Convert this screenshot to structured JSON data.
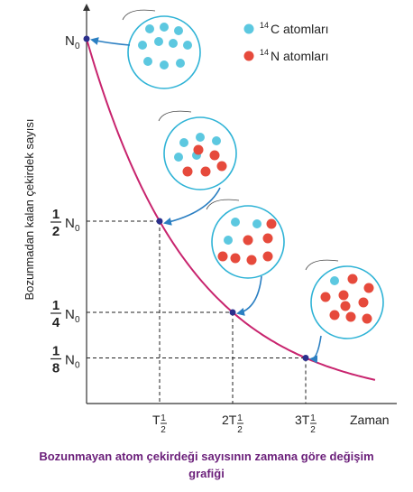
{
  "chart_data": {
    "type": "line",
    "ylabel": "Bozunmadan kalan çekirdek sayısı",
    "xlabel": "Zaman",
    "x_ticks": [
      {
        "value": 1,
        "main": "T",
        "sub": "1",
        "subden": "2",
        "prefix": ""
      },
      {
        "value": 2,
        "main": "T",
        "sub": "1",
        "subden": "2",
        "prefix": "2"
      },
      {
        "value": 3,
        "main": "T",
        "sub": "1",
        "subden": "2",
        "prefix": "3"
      }
    ],
    "y_ticks": [
      {
        "value": 1,
        "num": "",
        "den": "",
        "label": "N",
        "sub": "0"
      },
      {
        "value": 0.5,
        "num": "1",
        "den": "2",
        "label": "N",
        "sub": "0"
      },
      {
        "value": 0.25,
        "num": "1",
        "den": "4",
        "label": "N",
        "sub": "0"
      },
      {
        "value": 0.125,
        "num": "1",
        "den": "8",
        "label": "N",
        "sub": "0"
      }
    ],
    "series": [
      {
        "x": [
          0,
          1,
          2,
          3
        ],
        "y": [
          1,
          0.5,
          0.25,
          0.125
        ],
        "color": "#c8246e"
      }
    ],
    "legend": [
      {
        "mass": "14",
        "element": "C atomları",
        "color": "#5cc8e0"
      },
      {
        "mass": "14",
        "element": "N atomları",
        "color": "#e64a3c"
      }
    ],
    "legend_position": "top-right",
    "samples": [
      {
        "at_x": 0,
        "c14": 10,
        "n14": 0
      },
      {
        "at_x": 1,
        "c14": 5,
        "n14": 5
      },
      {
        "at_x": 2,
        "c14": 3,
        "n14": 7
      },
      {
        "at_x": 3,
        "c14": 1,
        "n14": 9
      }
    ],
    "colors": {
      "curve": "#c8246e",
      "point": "#2b2f8c",
      "arrow": "#2b7fc2",
      "c14": "#5cc8e0",
      "n14": "#e64a3c",
      "circle": "#2fb3d6"
    }
  },
  "caption": {
    "line1": "Bozunmayan atom çekirdeği sayısının zamana göre değişim",
    "line2": "grafiği"
  }
}
